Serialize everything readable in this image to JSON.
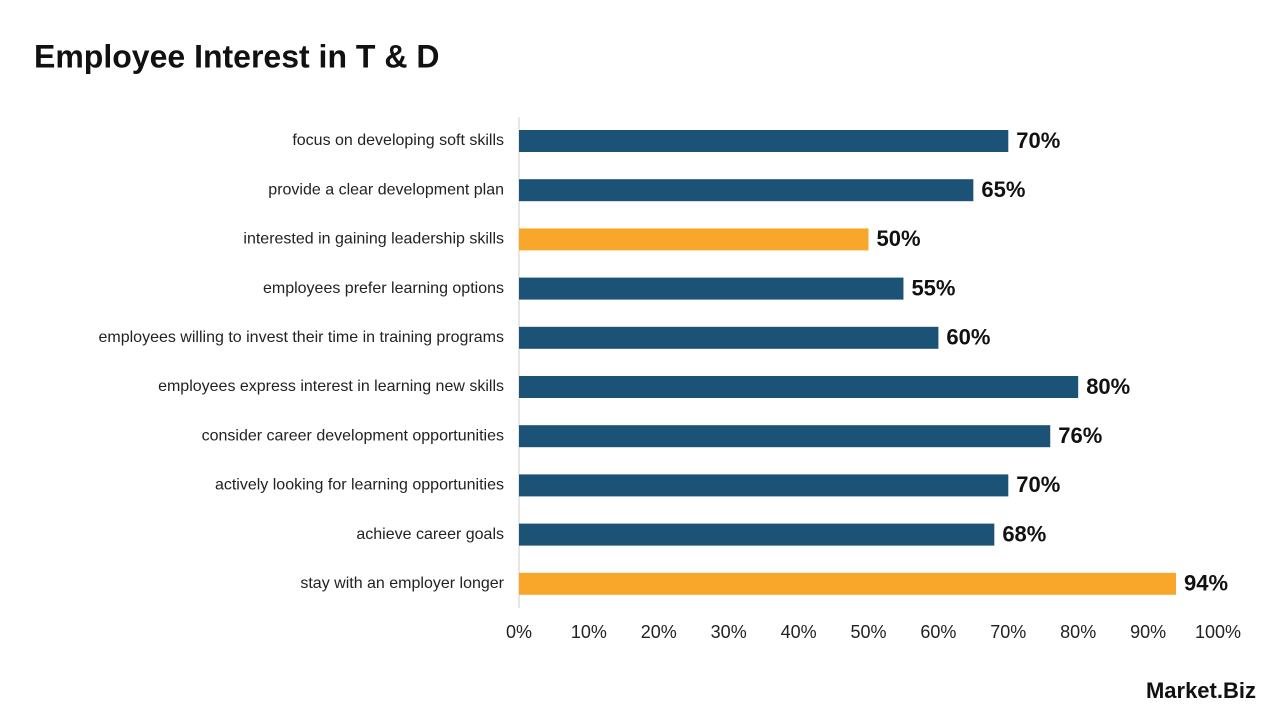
{
  "chart_data": {
    "type": "bar",
    "orientation": "horizontal",
    "title": "Employee Interest in T & D",
    "categories": [
      "focus on developing soft skills",
      "provide a clear development plan",
      "interested in gaining leadership skills",
      "employees prefer learning options",
      "employees willing to invest their time in training programs",
      "employees express interest in learning new skills",
      "consider career development opportunities",
      "actively looking for learning opportunities",
      "achieve career goals",
      "stay with an employer longer"
    ],
    "values": [
      70,
      65,
      50,
      55,
      60,
      80,
      76,
      70,
      68,
      94
    ],
    "value_labels": [
      "70%",
      "65%",
      "50%",
      "55%",
      "60%",
      "80%",
      "76%",
      "70%",
      "68%",
      "94%"
    ],
    "colors": [
      "#1b5276",
      "#1b5276",
      "#f9a72b",
      "#1b5276",
      "#1b5276",
      "#1b5276",
      "#1b5276",
      "#1b5276",
      "#1b5276",
      "#f9a72b"
    ],
    "xlim": [
      0,
      100
    ],
    "xticks": [
      {
        "value": 0,
        "label": "0%"
      },
      {
        "value": 10,
        "label": "10%"
      },
      {
        "value": 20,
        "label": "20%"
      },
      {
        "value": 30,
        "label": "30%"
      },
      {
        "value": 40,
        "label": "40%"
      },
      {
        "value": 50,
        "label": "50%"
      },
      {
        "value": 60,
        "label": "60%"
      },
      {
        "value": 70,
        "label": "70%"
      },
      {
        "value": 80,
        "label": "80%"
      },
      {
        "value": 90,
        "label": "90%"
      },
      {
        "value": 100,
        "label": "100%"
      }
    ],
    "grid": false,
    "logo": "Market.Biz"
  }
}
